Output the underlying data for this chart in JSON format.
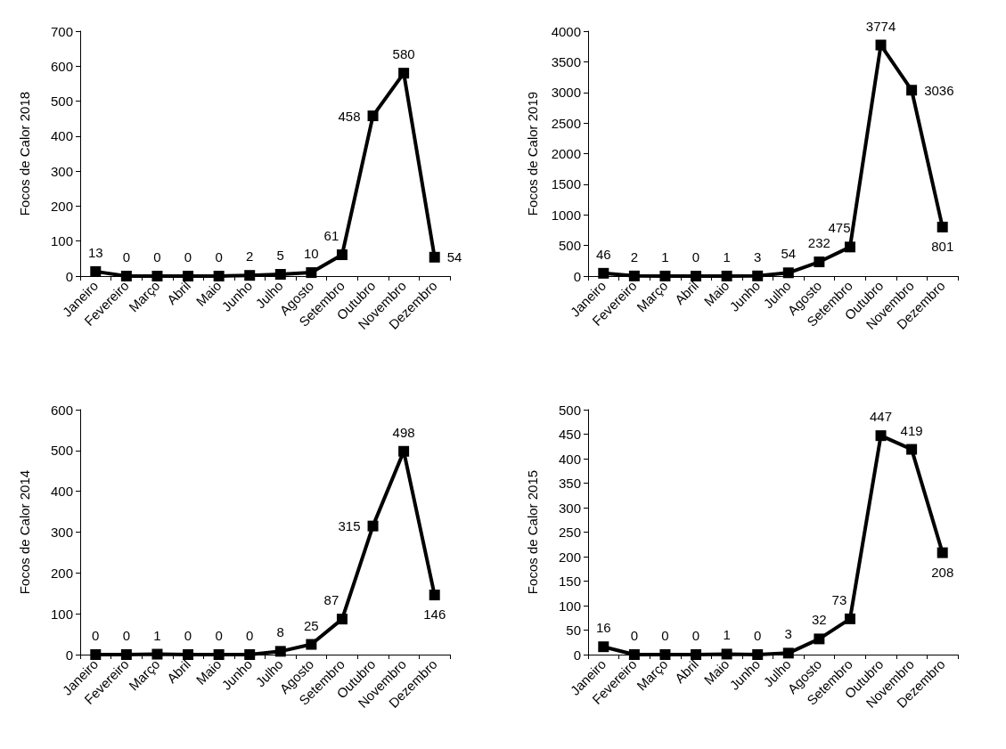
{
  "chart_data": [
    {
      "type": "line",
      "ylabel": "Focos de Calor 2018",
      "categories": [
        "Janeiro",
        "Fevereiro",
        "Março",
        "Abril",
        "Maio",
        "Junho",
        "Julho",
        "Agosto",
        "Setembro",
        "Outubro",
        "Novembro",
        "Dezembro"
      ],
      "series": [
        {
          "color": "#000000",
          "values": [
            13,
            0,
            0,
            0,
            0,
            2,
            5,
            10,
            61,
            458,
            580,
            54
          ]
        }
      ],
      "ylim": [
        0,
        700
      ],
      "yticks": [
        0,
        100,
        200,
        300,
        400,
        500,
        600,
        700
      ],
      "marker": "square",
      "line_style": "solid",
      "data_labels": true
    },
    {
      "type": "line",
      "ylabel": "Focos de Calor 2019",
      "categories": [
        "Janeiro",
        "Fevereiro",
        "Março",
        "Abril",
        "Maio",
        "Junho",
        "Julho",
        "Agosto",
        "Setembro",
        "Outubro",
        "Novembro",
        "Dezembro"
      ],
      "series": [
        {
          "color": "#000000",
          "values": [
            46,
            2,
            1,
            0,
            1,
            3,
            54,
            232,
            475,
            3774,
            3036,
            801
          ]
        }
      ],
      "ylim": [
        0,
        4000
      ],
      "yticks": [
        0,
        500,
        1000,
        1500,
        2000,
        2500,
        3000,
        3500,
        4000
      ],
      "marker": "square",
      "line_style": "solid",
      "data_labels": true
    },
    {
      "type": "line",
      "ylabel": "Focos de Calor 2014",
      "categories": [
        "Janeiro",
        "Fevereiro",
        "Março",
        "Abril",
        "Maio",
        "Junho",
        "Julho",
        "Agosto",
        "Setembro",
        "Outubro",
        "Novembro",
        "Dezembro"
      ],
      "series": [
        {
          "color": "#000000",
          "values": [
            0,
            0,
            1,
            0,
            0,
            0,
            8,
            25,
            87,
            315,
            498,
            146
          ]
        }
      ],
      "ylim": [
        0,
        600
      ],
      "yticks": [
        0,
        100,
        200,
        300,
        400,
        500,
        600
      ],
      "marker": "square",
      "line_style": "solid",
      "data_labels": true
    },
    {
      "type": "line",
      "ylabel": "Focos de Calor 2015",
      "categories": [
        "Janeiro",
        "Fevereiro",
        "Março",
        "Abril",
        "Maio",
        "Junho",
        "Julho",
        "Agosto",
        "Setembro",
        "Outubro",
        "Novembro",
        "Dezembro"
      ],
      "series": [
        {
          "color": "#000000",
          "values": [
            16,
            0,
            0,
            0,
            1,
            0,
            3,
            32,
            73,
            447,
            419,
            208
          ]
        }
      ],
      "ylim": [
        0,
        500
      ],
      "yticks": [
        0,
        50,
        100,
        150,
        200,
        250,
        300,
        350,
        400,
        450,
        500
      ],
      "marker": "square",
      "line_style": "solid",
      "data_labels": true
    }
  ]
}
